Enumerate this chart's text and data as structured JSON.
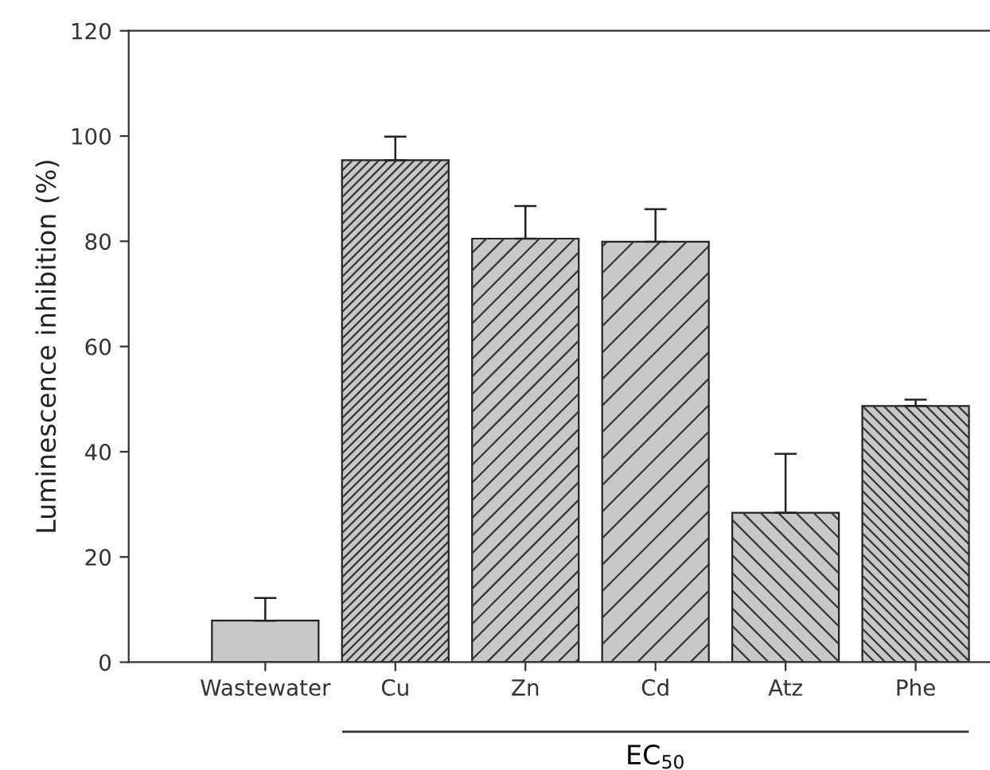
{
  "chart_data": {
    "type": "bar",
    "ylabel": "Luminescence inhibition (%)",
    "categories": [
      "Wastewater",
      "Cu",
      "Zn",
      "Cd",
      "Atz",
      "Phe"
    ],
    "values": [
      7.9,
      95.4,
      80.5,
      79.9,
      28.4,
      48.7
    ],
    "errors": [
      [
        7.9,
        12.2
      ],
      [
        95.4,
        99.9
      ],
      [
        80.5,
        86.7
      ],
      [
        79.9,
        86.1
      ],
      [
        28.4,
        39.6
      ],
      [
        48.7,
        49.9
      ]
    ],
    "color": "#c8c8c8",
    "ylim": [
      0,
      120
    ],
    "yticks": [
      0,
      20,
      40,
      60,
      80,
      100,
      120
    ],
    "annotations": [
      "EC$_{50}$"
    ],
    "grid": false
  }
}
